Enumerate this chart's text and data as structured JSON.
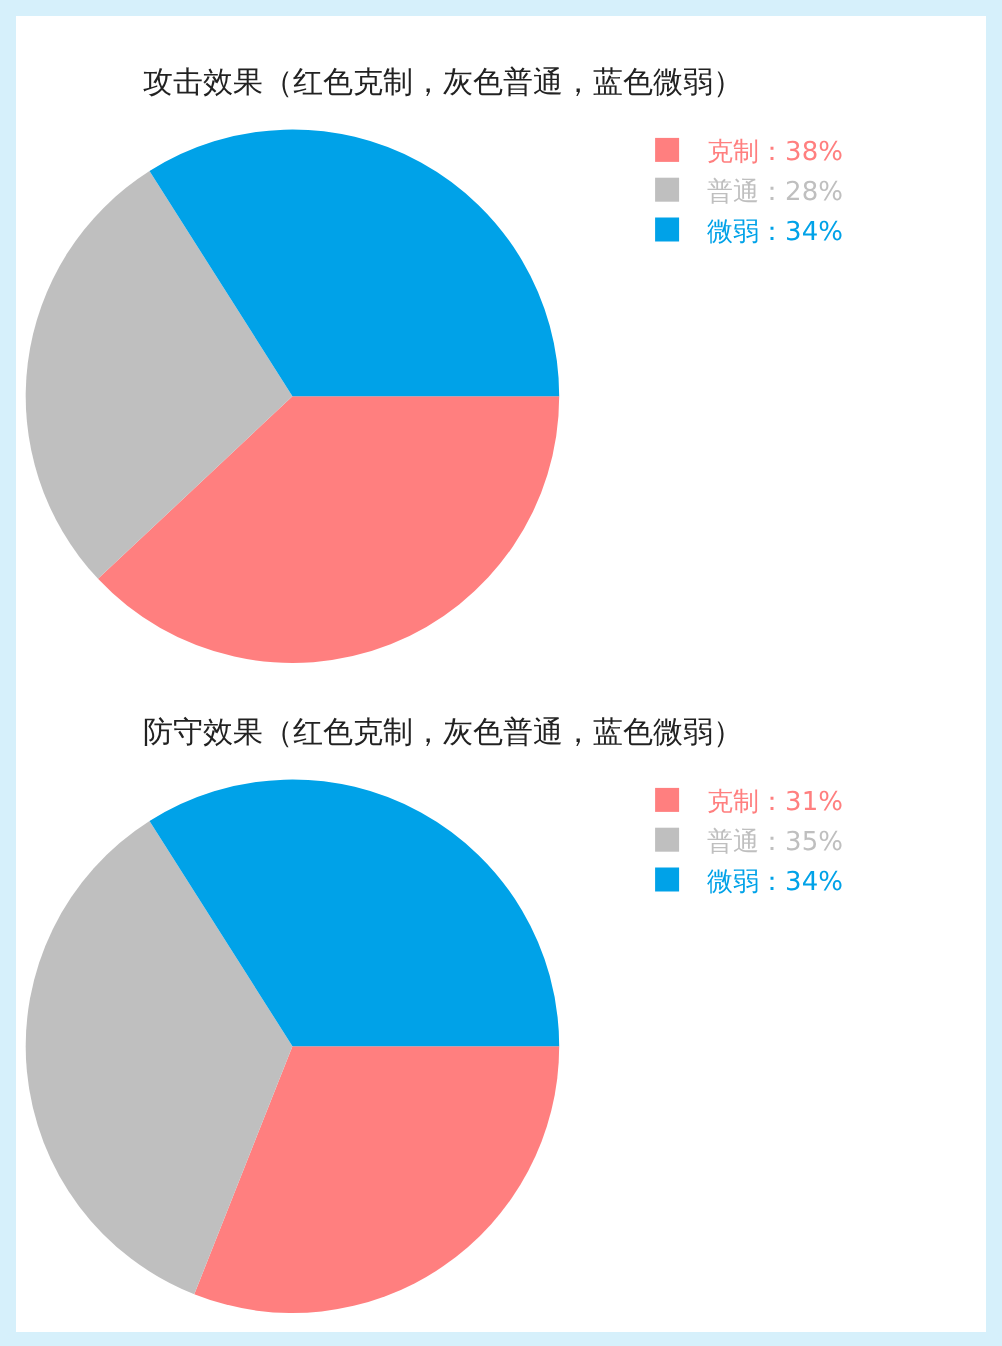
{
  "chart_data": [
    {
      "type": "pie",
      "title": "攻击效果（红色克制，灰色普通，蓝色微弱）",
      "categories": [
        "克制：38%",
        "普通：28%",
        "微弱：34%"
      ],
      "values": [
        38,
        28,
        34
      ],
      "colors": [
        "#ff7f7f",
        "#bfbfbf",
        "#00a2e8"
      ],
      "legend": "top right"
    },
    {
      "type": "pie",
      "title": "防守效果（红色克制，灰色普通，蓝色微弱）",
      "categories": [
        "克制：31%",
        "普通：35%",
        "微弱：34%"
      ],
      "values": [
        31,
        35,
        34
      ],
      "colors": [
        "#ff7f7f",
        "#bfbfbf",
        "#00a2e8"
      ],
      "legend": "top right"
    }
  ]
}
